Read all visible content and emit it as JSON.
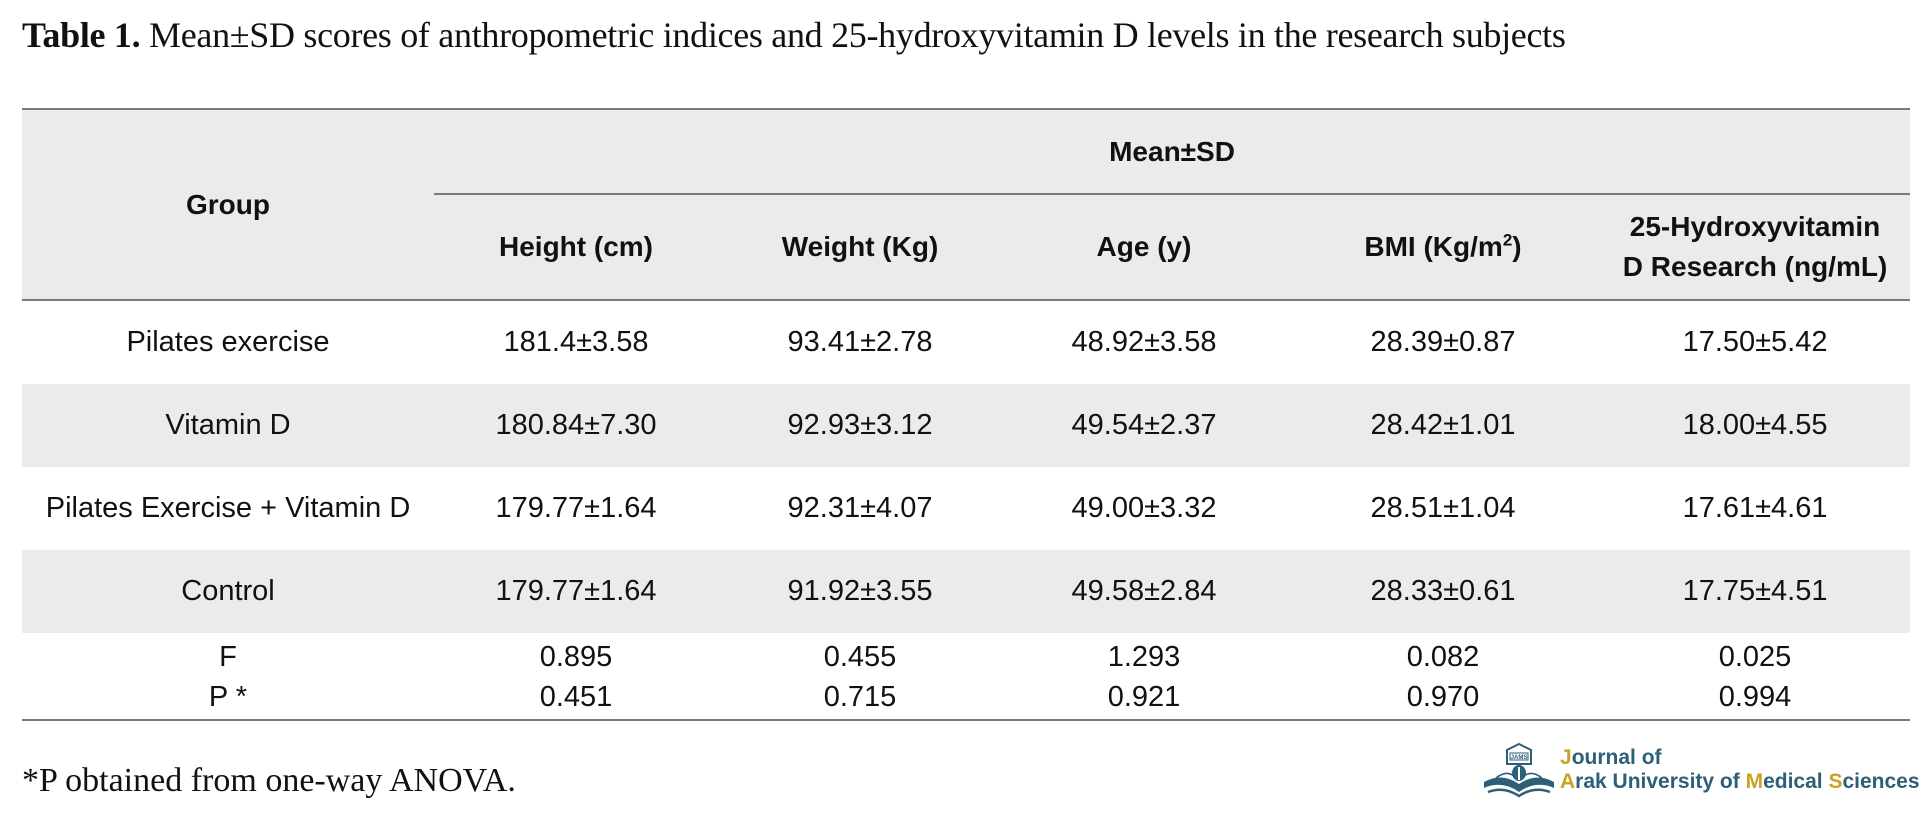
{
  "caption": {
    "label": "Table 1.",
    "text": " Mean±SD scores of anthropometric indices and 25-hydroxyvitamin D levels in the research subjects"
  },
  "table": {
    "group_header": "Group",
    "span_header": "Mean±SD",
    "columns": [
      "Height (cm)",
      "Weight (Kg)",
      "Age (y)",
      "BMI (Kg/m²)",
      "25-Hydroxyvitamin D Research (ng/mL)"
    ],
    "col5_line1": "25-Hydroxyvitamin",
    "col5_line2": "D Research (ng/mL)",
    "bmi_base": "BMI (Kg/m",
    "bmi_sup": "2",
    "bmi_end": ")",
    "rows": [
      {
        "group": "Pilates exercise",
        "values": [
          "181.4±3.58",
          "93.41±2.78",
          "48.92±3.58",
          "28.39±0.87",
          "17.50±5.42"
        ]
      },
      {
        "group": "Vitamin D",
        "values": [
          "180.84±7.30",
          "92.93±3.12",
          "49.54±2.37",
          "28.42±1.01",
          "18.00±4.55"
        ]
      },
      {
        "group": "Pilates Exercise + Vitamin D",
        "values": [
          "179.77±1.64",
          "92.31±4.07",
          "49.00±3.32",
          "28.51±1.04",
          "17.61±4.61"
        ]
      },
      {
        "group": "Control",
        "values": [
          "179.77±1.64",
          "91.92±3.55",
          "49.58±2.84",
          "28.33±0.61",
          "17.75±4.51"
        ]
      }
    ],
    "stats": [
      {
        "label": "F",
        "values": [
          "0.895",
          "0.455",
          "1.293",
          "0.082",
          "0.025"
        ]
      },
      {
        "label": "P *",
        "values": [
          "0.451",
          "0.715",
          "0.921",
          "0.970",
          "0.994"
        ]
      }
    ]
  },
  "footnote": "*P obtained from one-way ANOVA.",
  "logo": {
    "emblem_text": "JAMS",
    "line1_first": "J",
    "line1_rest": "ournal of",
    "line2": [
      {
        "text": "A",
        "accent": true
      },
      {
        "text": "rak University of ",
        "accent": false
      },
      {
        "text": "M",
        "accent": true
      },
      {
        "text": "edical ",
        "accent": false
      },
      {
        "text": "S",
        "accent": true
      },
      {
        "text": "ciences",
        "accent": false
      }
    ],
    "colors": {
      "primary": "#2d5f78",
      "accent": "#c9a227"
    }
  }
}
